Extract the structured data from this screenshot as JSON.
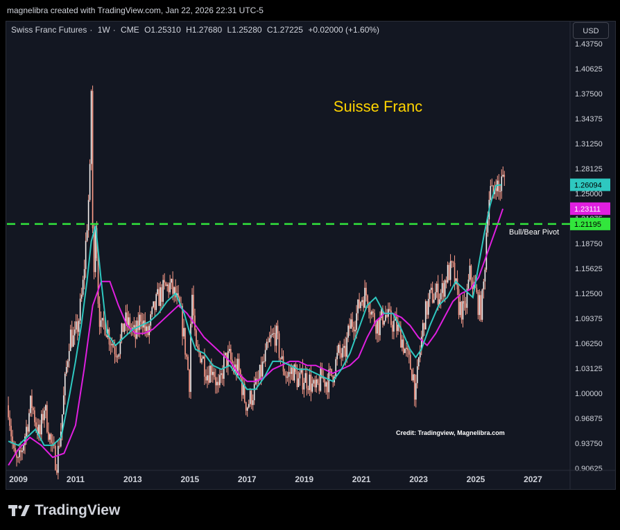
{
  "header": {
    "credit": "magnelibra created with TradingView.com, Jan 22, 2026 22:31 UTC-5"
  },
  "legend": {
    "symbol": "Swiss Franc Futures",
    "interval": "1W",
    "exchange": "CME",
    "open": "O1.25310",
    "high": "H1.27680",
    "low": "L1.25280",
    "close": "C1.27225",
    "change": "+0.02000 (+1.60%)"
  },
  "currency_label": "USD",
  "footer": {
    "brand": "TradingView"
  },
  "colors": {
    "background": "#131722",
    "grid": "#2a2e39",
    "candles": "#ff9d8a",
    "candles_up": "#f5f0ee",
    "ma_fast": "#2ec8c0",
    "ma_slow": "#e01fe0",
    "pivot_line": "#32e63c",
    "title": "#ffd400"
  },
  "chart_data": {
    "type": "line",
    "title": "Suisse Franc",
    "annotation": "Credit: Tradingview, Magnelibra.com",
    "x_ticks": [
      "2009",
      "2011",
      "2013",
      "2015",
      "2017",
      "2019",
      "2021",
      "2023",
      "2025",
      "2027"
    ],
    "y_ticks": [
      "1.43750",
      "1.40625",
      "1.37500",
      "1.34375",
      "1.31250",
      "1.28125",
      "1.25000",
      "1.21875",
      "1.18750",
      "1.15625",
      "1.12500",
      "1.09375",
      "1.06250",
      "1.03125",
      "1.00000",
      "0.96875",
      "0.93750",
      "0.90625"
    ],
    "xlim": [
      2008.6,
      2028.3
    ],
    "ylim": [
      0.90625,
      1.4436
    ],
    "grid": false,
    "price_series": {
      "name": "Swiss Franc Futures",
      "x": [
        2008.65,
        2008.75,
        2008.85,
        2009.0,
        2009.15,
        2009.3,
        2009.45,
        2009.6,
        2009.75,
        2009.9,
        2010.05,
        2010.2,
        2010.35,
        2010.5,
        2010.65,
        2010.8,
        2010.95,
        2011.1,
        2011.25,
        2011.4,
        2011.5,
        2011.55,
        2011.6,
        2011.65,
        2011.7,
        2011.8,
        2011.9,
        2012.0,
        2012.2,
        2012.4,
        2012.55,
        2012.7,
        2012.9,
        2013.1,
        2013.3,
        2013.5,
        2013.7,
        2013.9,
        2014.1,
        2014.3,
        2014.5,
        2014.7,
        2014.9,
        2015.0,
        2015.05,
        2015.2,
        2015.4,
        2015.6,
        2015.8,
        2016.0,
        2016.2,
        2016.4,
        2016.5,
        2016.7,
        2016.9,
        2017.0,
        2017.2,
        2017.4,
        2017.6,
        2017.8,
        2018.0,
        2018.2,
        2018.4,
        2018.6,
        2018.8,
        2019.0,
        2019.2,
        2019.4,
        2019.6,
        2019.8,
        2020.0,
        2020.2,
        2020.4,
        2020.6,
        2020.8,
        2021.0,
        2021.2,
        2021.4,
        2021.6,
        2021.8,
        2022.0,
        2022.2,
        2022.4,
        2022.6,
        2022.8,
        2022.9,
        2023.0,
        2023.2,
        2023.4,
        2023.6,
        2023.8,
        2024.0,
        2024.2,
        2024.4,
        2024.6,
        2024.8,
        2025.0,
        2025.1,
        2025.2,
        2025.3,
        2025.4,
        2025.5,
        2025.6,
        2025.7,
        2025.8,
        2025.9,
        2026.05
      ],
      "y": [
        0.985,
        0.95,
        0.92,
        0.91,
        0.935,
        0.96,
        0.99,
        0.965,
        0.945,
        0.985,
        0.955,
        0.925,
        0.915,
        0.96,
        1.02,
        1.075,
        1.065,
        1.09,
        1.13,
        1.21,
        1.27,
        1.38,
        1.2,
        1.14,
        1.23,
        1.11,
        1.075,
        1.09,
        1.07,
        1.055,
        1.06,
        1.09,
        1.085,
        1.07,
        1.1,
        1.07,
        1.1,
        1.12,
        1.13,
        1.135,
        1.12,
        1.095,
        1.04,
        1.01,
        1.14,
        1.05,
        1.05,
        1.025,
        1.035,
        1.0,
        1.04,
        1.045,
        1.03,
        1.03,
        0.995,
        0.985,
        1.0,
        1.015,
        1.04,
        1.065,
        1.075,
        1.04,
        1.02,
        1.03,
        1.015,
        1.02,
        1.015,
        1.0,
        1.02,
        1.015,
        1.025,
        1.05,
        1.045,
        1.085,
        1.095,
        1.12,
        1.125,
        1.095,
        1.085,
        1.1,
        1.09,
        1.085,
        1.07,
        1.045,
        1.025,
        0.995,
        1.04,
        1.095,
        1.12,
        1.125,
        1.125,
        1.15,
        1.155,
        1.11,
        1.1,
        1.15,
        1.125,
        1.11,
        1.105,
        1.145,
        1.225,
        1.255,
        1.245,
        1.27,
        1.25,
        1.265,
        1.272
      ]
    },
    "series": [
      {
        "name": "",
        "color": "#2ec8c0",
        "last_value": "1.26094",
        "x": [
          2008.65,
          2009.0,
          2009.3,
          2009.6,
          2009.9,
          2010.2,
          2010.5,
          2010.8,
          2011.0,
          2011.2,
          2011.4,
          2011.55,
          2011.7,
          2011.9,
          2012.1,
          2012.4,
          2012.7,
          2013.0,
          2013.3,
          2013.6,
          2013.9,
          2014.2,
          2014.5,
          2014.8,
          2015.0,
          2015.2,
          2015.5,
          2015.8,
          2016.1,
          2016.4,
          2016.7,
          2017.0,
          2017.3,
          2017.6,
          2017.9,
          2018.2,
          2018.5,
          2018.8,
          2019.1,
          2019.4,
          2019.7,
          2020.0,
          2020.3,
          2020.6,
          2020.9,
          2021.2,
          2021.5,
          2021.8,
          2022.1,
          2022.4,
          2022.7,
          2022.9,
          2023.1,
          2023.4,
          2023.7,
          2024.0,
          2024.3,
          2024.6,
          2024.9,
          2025.1,
          2025.3,
          2025.5,
          2025.7,
          2025.9
        ],
        "y": [
          0.94,
          0.935,
          0.945,
          0.955,
          0.935,
          0.935,
          0.945,
          1.0,
          1.04,
          1.085,
          1.14,
          1.19,
          1.21,
          1.14,
          1.075,
          1.06,
          1.07,
          1.08,
          1.085,
          1.09,
          1.1,
          1.115,
          1.125,
          1.1,
          1.075,
          1.055,
          1.05,
          1.035,
          1.03,
          1.035,
          1.02,
          1.005,
          1.005,
          1.02,
          1.04,
          1.04,
          1.035,
          1.03,
          1.03,
          1.025,
          1.02,
          1.015,
          1.03,
          1.05,
          1.08,
          1.11,
          1.12,
          1.1,
          1.1,
          1.08,
          1.055,
          1.045,
          1.055,
          1.085,
          1.11,
          1.12,
          1.14,
          1.13,
          1.12,
          1.16,
          1.2,
          1.235,
          1.26,
          1.261
        ]
      },
      {
        "name": "",
        "color": "#e01fe0",
        "last_value": "1.23111",
        "x": [
          2008.65,
          2009.0,
          2009.4,
          2009.8,
          2010.2,
          2010.6,
          2011.0,
          2011.3,
          2011.6,
          2011.9,
          2012.2,
          2012.5,
          2012.8,
          2013.1,
          2013.4,
          2013.7,
          2014.0,
          2014.3,
          2014.6,
          2014.9,
          2015.2,
          2015.5,
          2015.8,
          2016.1,
          2016.4,
          2016.7,
          2017.0,
          2017.3,
          2017.6,
          2017.9,
          2018.2,
          2018.5,
          2018.8,
          2019.1,
          2019.4,
          2019.7,
          2020.0,
          2020.3,
          2020.6,
          2020.9,
          2021.2,
          2021.5,
          2021.8,
          2022.1,
          2022.4,
          2022.7,
          2023.0,
          2023.3,
          2023.6,
          2023.9,
          2024.2,
          2024.5,
          2024.8,
          2025.1,
          2025.4,
          2025.7,
          2025.95
        ],
        "y": [
          0.91,
          0.93,
          0.945,
          0.935,
          0.92,
          0.925,
          0.96,
          1.03,
          1.11,
          1.14,
          1.14,
          1.11,
          1.085,
          1.075,
          1.075,
          1.08,
          1.09,
          1.1,
          1.11,
          1.1,
          1.085,
          1.07,
          1.06,
          1.05,
          1.04,
          1.025,
          1.015,
          1.015,
          1.02,
          1.03,
          1.035,
          1.04,
          1.04,
          1.035,
          1.035,
          1.03,
          1.025,
          1.03,
          1.035,
          1.045,
          1.07,
          1.09,
          1.1,
          1.1,
          1.095,
          1.085,
          1.07,
          1.06,
          1.075,
          1.095,
          1.115,
          1.125,
          1.13,
          1.145,
          1.175,
          1.205,
          1.231
        ]
      }
    ],
    "pivot": {
      "value": 1.21195,
      "label": "Bull/Bear Pivot",
      "price_label": "1.21195"
    }
  }
}
